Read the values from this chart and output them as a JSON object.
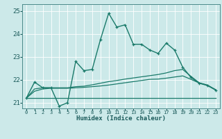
{
  "xlabel": "Humidex (Indice chaleur)",
  "ylabel": "",
  "xlim": [
    -0.5,
    23.5
  ],
  "ylim": [
    20.75,
    25.3
  ],
  "yticks": [
    21,
    22,
    23,
    24,
    25
  ],
  "xticks": [
    0,
    1,
    2,
    3,
    4,
    5,
    6,
    7,
    8,
    9,
    10,
    11,
    12,
    13,
    14,
    15,
    16,
    17,
    18,
    19,
    20,
    21,
    22,
    23
  ],
  "bg_color": "#cce9e9",
  "grid_color": "#ffffff",
  "line_color": "#1a7a6a",
  "main_line": [
    21.2,
    21.9,
    21.65,
    21.65,
    20.85,
    21.0,
    22.8,
    22.4,
    22.45,
    23.75,
    24.9,
    24.3,
    24.4,
    23.55,
    23.55,
    23.3,
    23.15,
    23.6,
    23.3,
    22.55,
    22.1,
    21.85,
    21.75,
    21.55
  ],
  "line2": [
    21.2,
    21.6,
    21.65,
    21.65,
    21.65,
    21.65,
    21.7,
    21.72,
    21.78,
    21.85,
    21.92,
    21.97,
    22.03,
    22.08,
    22.13,
    22.18,
    22.23,
    22.3,
    22.4,
    22.45,
    22.15,
    21.87,
    21.77,
    21.57
  ],
  "line3": [
    21.2,
    21.5,
    21.6,
    21.63,
    21.63,
    21.63,
    21.65,
    21.67,
    21.7,
    21.73,
    21.77,
    21.82,
    21.87,
    21.92,
    21.97,
    22.02,
    22.03,
    22.07,
    22.12,
    22.17,
    22.02,
    21.86,
    21.76,
    21.56
  ],
  "line4": [
    21.2,
    21.2,
    21.2,
    21.2,
    21.2,
    21.2,
    21.2,
    21.2,
    21.2,
    21.2,
    21.2,
    21.2,
    21.2,
    21.2,
    21.2,
    21.2,
    21.2,
    21.2,
    21.2,
    21.2,
    21.2,
    21.2,
    21.2,
    21.2
  ],
  "figsize": [
    3.2,
    2.0
  ],
  "dpi": 100
}
